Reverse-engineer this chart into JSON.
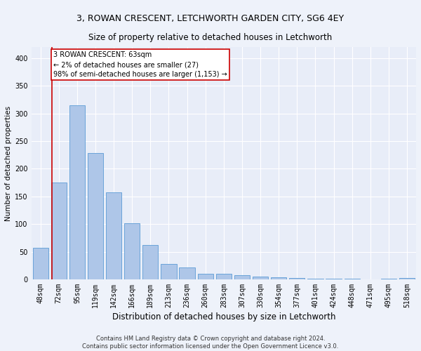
{
  "title": "3, ROWAN CRESCENT, LETCHWORTH GARDEN CITY, SG6 4EY",
  "subtitle": "Size of property relative to detached houses in Letchworth",
  "xlabel": "Distribution of detached houses by size in Letchworth",
  "ylabel": "Number of detached properties",
  "categories": [
    "48sqm",
    "72sqm",
    "95sqm",
    "119sqm",
    "142sqm",
    "166sqm",
    "189sqm",
    "213sqm",
    "236sqm",
    "260sqm",
    "283sqm",
    "307sqm",
    "330sqm",
    "354sqm",
    "377sqm",
    "401sqm",
    "424sqm",
    "448sqm",
    "471sqm",
    "495sqm",
    "518sqm"
  ],
  "values": [
    57,
    175,
    315,
    228,
    157,
    102,
    62,
    28,
    22,
    10,
    10,
    8,
    5,
    4,
    2,
    1,
    1,
    1,
    0,
    1,
    2
  ],
  "bar_color": "#aec6e8",
  "bar_edge_color": "#5b9bd5",
  "annotation_box_text": "3 ROWAN CRESCENT: 63sqm\n← 2% of detached houses are smaller (27)\n98% of semi-detached houses are larger (1,153) →",
  "annotation_line_color": "#cc0000",
  "annotation_box_edge_color": "#cc0000",
  "footnote": "Contains HM Land Registry data © Crown copyright and database right 2024.\nContains public sector information licensed under the Open Government Licence v3.0.",
  "ylim": [
    0,
    420
  ],
  "yticks": [
    0,
    50,
    100,
    150,
    200,
    250,
    300,
    350,
    400
  ],
  "background_color": "#eef2fa",
  "plot_background": "#e8edf8",
  "grid_color": "#ffffff",
  "title_fontsize": 9,
  "subtitle_fontsize": 8.5,
  "xlabel_fontsize": 8.5,
  "ylabel_fontsize": 7.5,
  "tick_fontsize": 7,
  "footnote_fontsize": 6
}
